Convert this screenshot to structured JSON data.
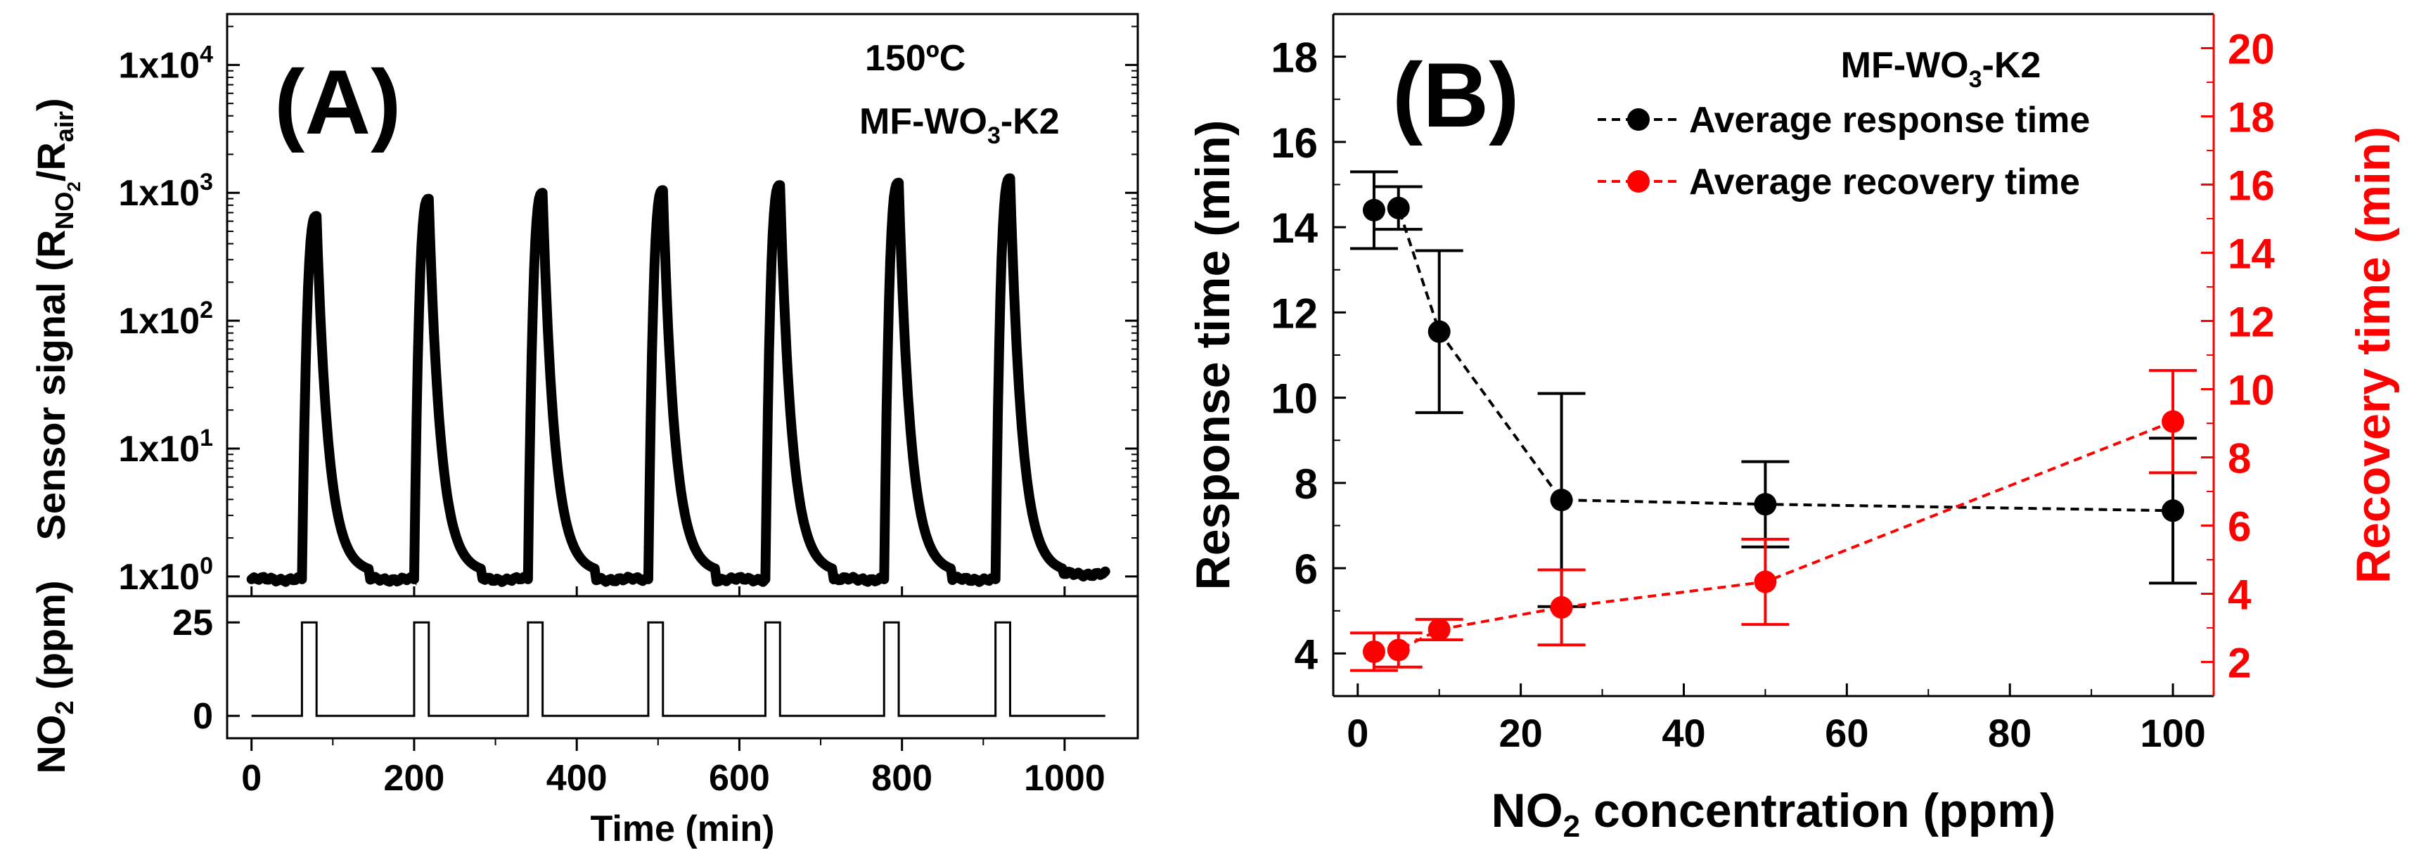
{
  "chart_data": [
    {
      "panel": "A",
      "type": "line",
      "panel_label": "(A)",
      "annotations": [
        "150ºC",
        "MF-WO",
        "3",
        "-K2"
      ],
      "ylabel_parts": [
        "Sensor signal (R",
        "NO",
        "2",
        "/R",
        "air",
        ")"
      ],
      "yscale": "log",
      "ylim": [
        0.7,
        25000
      ],
      "ytick_values": [
        1,
        10,
        100,
        1000,
        10000
      ],
      "ytick_mantissa": "1x10",
      "ytick_exponents": [
        "0",
        "1",
        "2",
        "3",
        "4"
      ],
      "xlim": [
        -30,
        1090
      ],
      "xticks": [
        0,
        200,
        400,
        600,
        800,
        1000
      ],
      "xtick_labels": [
        "0",
        "200",
        "400",
        "600",
        "800",
        "1000"
      ],
      "xlabel": "Time (min)",
      "baseline": 0.95,
      "pulses": [
        {
          "start": 62,
          "end": 80,
          "peak": 660
        },
        {
          "start": 200,
          "end": 218,
          "peak": 900
        },
        {
          "start": 340,
          "end": 358,
          "peak": 1000
        },
        {
          "start": 488,
          "end": 506,
          "peak": 1050
        },
        {
          "start": 632,
          "end": 650,
          "peak": 1150
        },
        {
          "start": 778,
          "end": 796,
          "peak": 1200
        },
        {
          "start": 915,
          "end": 933,
          "peak": 1300
        }
      ],
      "x_end": 1050,
      "sub": {
        "ylabel_parts": [
          "NO",
          "2",
          " (ppm)"
        ],
        "ylim": [
          -6,
          32
        ],
        "yticks": [
          0,
          25
        ],
        "ytick_labels": [
          "0",
          "25"
        ],
        "low": 0,
        "high": 25
      }
    },
    {
      "panel": "B",
      "type": "scatter",
      "panel_label": "(B)",
      "title_parts": [
        "MF-WO",
        "3",
        "-K2"
      ],
      "xlabel_parts": [
        "NO",
        "2",
        " concentration (ppm)"
      ],
      "xlim": [
        -3,
        105
      ],
      "xticks": [
        0,
        20,
        40,
        60,
        80,
        100
      ],
      "xtick_labels": [
        "0",
        "20",
        "40",
        "60",
        "80",
        "100"
      ],
      "ylabel": "Response time (min)",
      "ylim": [
        3,
        19
      ],
      "yticks": [
        4,
        6,
        8,
        10,
        12,
        14,
        16,
        18
      ],
      "ytick_labels": [
        "4",
        "6",
        "8",
        "10",
        "12",
        "14",
        "16",
        "18"
      ],
      "y2label": "Recovery time (min)",
      "y2lim": [
        1,
        21
      ],
      "y2ticks": [
        2,
        4,
        6,
        8,
        10,
        12,
        14,
        16,
        18,
        20
      ],
      "y2tick_labels": [
        "2",
        "4",
        "6",
        "8",
        "10",
        "12",
        "14",
        "16",
        "18",
        "20"
      ],
      "series": [
        {
          "name": "Average response time",
          "color": "#000000",
          "axis": "left",
          "x": [
            2,
            5,
            10,
            25,
            50,
            100
          ],
          "y": [
            14.4,
            14.45,
            11.55,
            7.6,
            7.5,
            7.35
          ],
          "err": [
            0.9,
            0.5,
            1.9,
            2.5,
            1.0,
            1.7
          ]
        },
        {
          "name": "Average recovery time",
          "color": "#ff0000",
          "axis": "right",
          "x": [
            2,
            5,
            10,
            25,
            50,
            100
          ],
          "y": [
            2.3,
            2.35,
            2.95,
            3.6,
            4.35,
            9.05
          ],
          "err": [
            0.55,
            0.5,
            0.3,
            1.1,
            1.25,
            1.5
          ]
        }
      ]
    }
  ]
}
